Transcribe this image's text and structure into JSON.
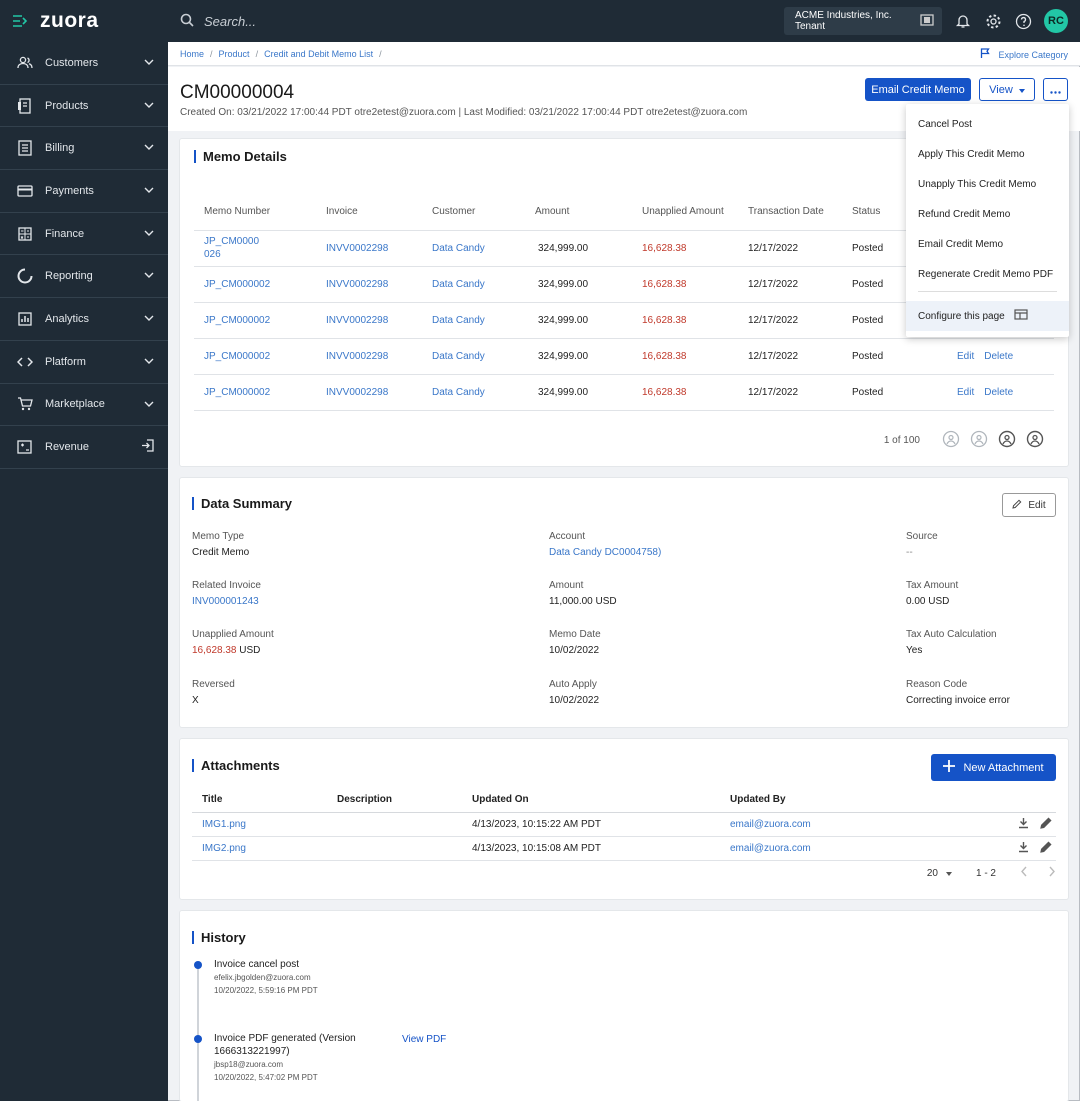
{
  "app": {
    "logo": "zuora"
  },
  "topbar": {
    "search_placeholder": "Search...",
    "tenant": "ACME Industries, Inc. Tenant",
    "avatar": "RC",
    "icons": [
      "menu-icon",
      "search-icon",
      "tenant-switch-icon",
      "bell-icon",
      "gear-icon",
      "help-icon"
    ]
  },
  "sidebar": {
    "items": [
      {
        "label": "Customers",
        "icon": "users-icon"
      },
      {
        "label": "Products",
        "icon": "box-icon"
      },
      {
        "label": "Billing",
        "icon": "receipt-icon"
      },
      {
        "label": "Payments",
        "icon": "card-icon"
      },
      {
        "label": "Finance",
        "icon": "calculator-icon"
      },
      {
        "label": "Reporting",
        "icon": "ring-icon"
      },
      {
        "label": "Analytics",
        "icon": "chart-icon"
      },
      {
        "label": "Platform",
        "icon": "code-icon"
      },
      {
        "label": "Marketplace",
        "icon": "cart-icon"
      },
      {
        "label": "Revenue",
        "icon": "revenue-icon"
      }
    ]
  },
  "breadcrumb": [
    "Home",
    "Product",
    "Credit and Debit Memo List"
  ],
  "explore": "Explore Category",
  "header": {
    "title": "CM00000004",
    "subtitle": "Created On: 03/21/2022 17:00:44 PDT otre2etest@zuora.com | Last Modified: 03/21/2022 17:00:44 PDT otre2etest@zuora.com",
    "email_button": "Email Credit Memo",
    "view_button": "View"
  },
  "menu": {
    "items": [
      "Cancel Post",
      "Apply This Credit Memo",
      "Unapply This Credit Memo",
      "Refund Credit Memo",
      "Email Credit Memo",
      "Regenerate Credit Memo PDF"
    ],
    "configure": "Configure this page"
  },
  "memo_details": {
    "title": "Memo Details",
    "columns": [
      "Memo Number",
      "Invoice",
      "Customer",
      "Amount",
      "Unapplied Amount",
      "Transaction Date",
      "Status"
    ],
    "rows": [
      {
        "memo": "JP_CM0000 026",
        "invoice": "INVV0002298",
        "customer": "Data Candy",
        "amount": "324,999.00",
        "unapplied": "16,628.38",
        "date": "12/17/2022",
        "status": "Posted",
        "edit": "",
        "delete": ""
      },
      {
        "memo": "JP_CM000002",
        "invoice": "INVV0002298",
        "customer": "Data Candy",
        "amount": "324,999.00",
        "unapplied": "16,628.38",
        "date": "12/17/2022",
        "status": "Posted",
        "edit": "",
        "delete": ""
      },
      {
        "memo": "JP_CM000002",
        "invoice": "INVV0002298",
        "customer": "Data Candy",
        "amount": "324,999.00",
        "unapplied": "16,628.38",
        "date": "12/17/2022",
        "status": "Posted",
        "edit": "",
        "delete": ""
      },
      {
        "memo": "JP_CM000002",
        "invoice": "INVV0002298",
        "customer": "Data Candy",
        "amount": "324,999.00",
        "unapplied": "16,628.38",
        "date": "12/17/2022",
        "status": "Posted",
        "edit": "Edit",
        "delete": "Delete"
      },
      {
        "memo": "JP_CM000002",
        "invoice": "INVV0002298",
        "customer": "Data Candy",
        "amount": "324,999.00",
        "unapplied": "16,628.38",
        "date": "12/17/2022",
        "status": "Posted",
        "edit": "Edit",
        "delete": "Delete"
      }
    ],
    "pager": "1 of 100"
  },
  "summary": {
    "title": "Data Summary",
    "edit": "Edit",
    "fields": {
      "memo_type": {
        "label": "Memo Type",
        "value": "Credit Memo"
      },
      "account": {
        "label": "Account",
        "value": "Data Candy DC0004758)"
      },
      "source": {
        "label": "Source",
        "value": "--"
      },
      "related_invoice": {
        "label": "Related Invoice",
        "value": "INV000001243"
      },
      "amount": {
        "label": "Amount",
        "value": "11,000.00 USD"
      },
      "tax_amount": {
        "label": "Tax Amount",
        "value": "0.00 USD"
      },
      "unapplied": {
        "label": "Unapplied Amount",
        "value": "16,628.38",
        "unit": "USD"
      },
      "memo_date": {
        "label": "Memo Date",
        "value": "10/02/2022"
      },
      "tax_auto": {
        "label": "Tax Auto Calculation",
        "value": "Yes"
      },
      "reversed": {
        "label": "Reversed",
        "value": "X"
      },
      "auto_apply": {
        "label": "Auto Apply",
        "value": "10/02/2022"
      },
      "reason": {
        "label": "Reason Code",
        "value": "Correcting invoice error"
      }
    }
  },
  "attachments": {
    "title": "Attachments",
    "new_button": "New Attachment",
    "columns": [
      "Title",
      "Description",
      "Updated On",
      "Updated By"
    ],
    "rows": [
      {
        "title": "IMG1.png",
        "description": "",
        "updated_on": "4/13/2023, 10:15:22 AM PDT",
        "updated_by": "email@zuora.com"
      },
      {
        "title": "IMG2.png",
        "description": "",
        "updated_on": "4/13/2023, 10:15:08 AM PDT",
        "updated_by": "email@zuora.com"
      }
    ],
    "page_size": "20",
    "range": "1 - 2"
  },
  "history": {
    "title": "History",
    "events": [
      {
        "title": "Invoice cancel post",
        "user": "efelix.jbgolden@zuora.com",
        "time": "10/20/2022, 5:59:16 PM PDT"
      },
      {
        "title": "Invoice PDF generated (Version",
        "title2": "1666313221997)",
        "user": "jbsp18@zuora.com",
        "time": "10/20/2022, 5:47:02 PM PDT",
        "link": "View PDF"
      }
    ]
  },
  "colors": {
    "brand": "#1553c7",
    "nav_bg": "#1f2b36",
    "link": "#3a77c9",
    "danger": "#c0392b",
    "avatar": "#22c7a6"
  }
}
